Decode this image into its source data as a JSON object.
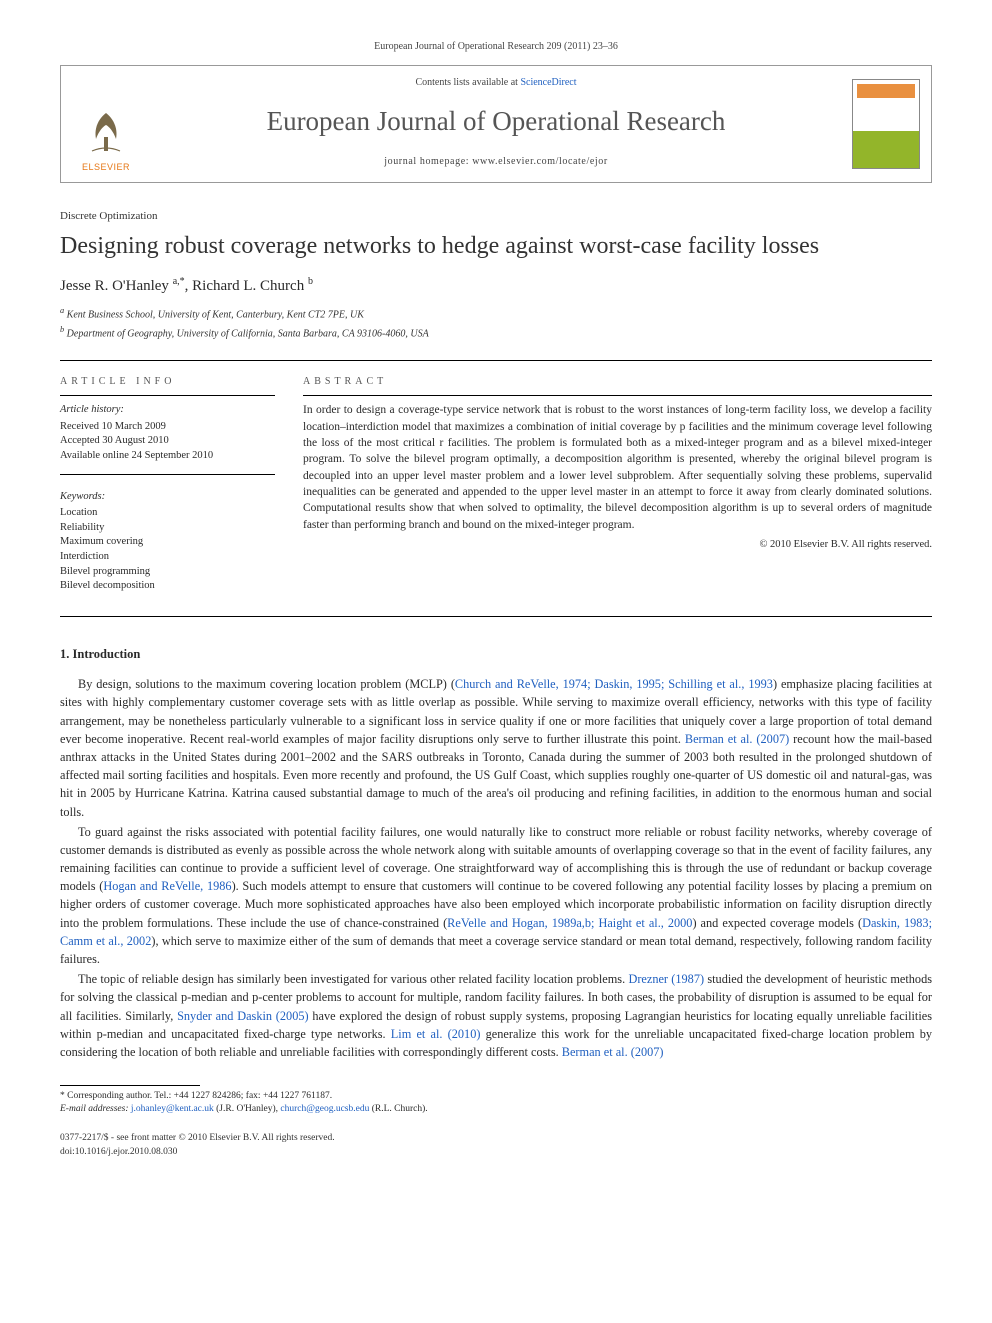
{
  "citation": "European Journal of Operational Research 209 (2011) 23–36",
  "header": {
    "contents_prefix": "Contents lists available at ",
    "contents_link": "ScienceDirect",
    "journal": "European Journal of Operational Research",
    "homepage_prefix": "journal homepage: ",
    "homepage_url": "www.elsevier.com/locate/ejor",
    "publisher_logo_text": "ELSEVIER",
    "publisher_color": "#e67817",
    "cover_accent_color": "#93b52a"
  },
  "article": {
    "section": "Discrete Optimization",
    "title": "Designing robust coverage networks to hedge against worst-case facility losses",
    "authors_html": "Jesse R. O'Hanley <sup>a,</sup>*, Richard L. Church <sup>b</sup>",
    "authors": [
      {
        "name": "Jesse R. O'Hanley",
        "markers": "a,*"
      },
      {
        "name": "Richard L. Church",
        "markers": "b"
      }
    ],
    "affiliations": [
      {
        "marker": "a",
        "text": "Kent Business School, University of Kent, Canterbury, Kent CT2 7PE, UK"
      },
      {
        "marker": "b",
        "text": "Department of Geography, University of California, Santa Barbara, CA 93106-4060, USA"
      }
    ]
  },
  "info": {
    "heading": "ARTICLE INFO",
    "history_heading": "Article history:",
    "history": [
      "Received 10 March 2009",
      "Accepted 30 August 2010",
      "Available online 24 September 2010"
    ],
    "keywords_heading": "Keywords:",
    "keywords": [
      "Location",
      "Reliability",
      "Maximum covering",
      "Interdiction",
      "Bilevel programming",
      "Bilevel decomposition"
    ]
  },
  "abstract": {
    "heading": "ABSTRACT",
    "body": "In order to design a coverage-type service network that is robust to the worst instances of long-term facility loss, we develop a facility location–interdiction model that maximizes a combination of initial coverage by p facilities and the minimum coverage level following the loss of the most critical r facilities. The problem is formulated both as a mixed-integer program and as a bilevel mixed-integer program. To solve the bilevel program optimally, a decomposition algorithm is presented, whereby the original bilevel program is decoupled into an upper level master problem and a lower level subproblem. After sequentially solving these problems, supervalid inequalities can be generated and appended to the upper level master in an attempt to force it away from clearly dominated solutions. Computational results show that when solved to optimality, the bilevel decomposition algorithm is up to several orders of magnitude faster than performing branch and bound on the mixed-integer program.",
    "copyright": "© 2010 Elsevier B.V. All rights reserved."
  },
  "sections": {
    "s1_heading": "1. Introduction",
    "paragraphs": [
      "By design, solutions to the maximum covering location problem (MCLP) (Church and ReVelle, 1974; Daskin, 1995; Schilling et al., 1993) emphasize placing facilities at sites with highly complementary customer coverage sets with as little overlap as possible. While serving to maximize overall efficiency, networks with this type of facility arrangement, may be nonetheless particularly vulnerable to a significant loss in service quality if one or more facilities that uniquely cover a large proportion of total demand ever become inoperative. Recent real-world examples of major facility disruptions only serve to further illustrate this point. Berman et al. (2007) recount how the mail-based anthrax attacks in the United States during 2001–2002 and the SARS outbreaks in Toronto, Canada during the summer of 2003 both resulted in the prolonged shutdown of affected mail sorting facilities and hospitals. Even more recently and profound, the US Gulf Coast, which supplies roughly one-quarter of US domestic oil and natural-gas, was hit in 2005 by Hurricane Katrina. Katrina caused substantial damage to much of the area's oil producing and refining facilities, in addition to the enormous human and social tolls.",
      "To guard against the risks associated with potential facility failures, one would naturally like to construct more reliable or robust facility networks, whereby coverage of customer demands is distributed as evenly as possible across the whole network along with suitable amounts of overlapping coverage so that in the event of facility failures, any remaining facilities can continue to provide a sufficient level of coverage. One straightforward way of accomplishing this is through the use of redundant or backup coverage models (Hogan and ReVelle, 1986). Such models attempt to ensure that customers will continue to be covered following any potential facility losses by placing a premium on higher orders of customer coverage. Much more sophisticated approaches have also been employed which incorporate probabilistic information on facility disruption directly into the problem formulations. These include the use of chance-constrained (ReVelle and Hogan, 1989a,b; Haight et al., 2000) and expected coverage models (Daskin, 1983; Camm et al., 2002), which serve to maximize either of the sum of demands that meet a coverage service standard or mean total demand, respectively, following random facility failures.",
      "The topic of reliable design has similarly been investigated for various other related facility location problems. Drezner (1987) studied the development of heuristic methods for solving the classical p-median and p-center problems to account for multiple, random facility failures. In both cases, the probability of disruption is assumed to be equal for all facilities. Similarly, Snyder and Daskin (2005) have explored the design of robust supply systems, proposing Lagrangian heuristics for locating equally unreliable facilities within p-median and uncapacitated fixed-charge type networks. Lim et al. (2010) generalize this work for the unreliable uncapacitated fixed-charge location problem by considering the location of both reliable and unreliable facilities with correspondingly different costs. Berman et al. (2007)"
    ],
    "ref_spans": {
      "p0": [
        "Church and ReVelle, 1974; Daskin, 1995; Schilling et al., 1993",
        "Berman et al. (2007)"
      ],
      "p1": [
        "Hogan and ReVelle, 1986",
        "ReVelle and Hogan, 1989a,b; Haight et al., 2000",
        "Daskin, 1983; Camm et al., 2002"
      ],
      "p2": [
        "Drezner (1987)",
        "Snyder and Daskin (2005)",
        "Lim et al. (2010)",
        "Berman et al. (2007)"
      ]
    }
  },
  "footnotes": {
    "corr_label": "* Corresponding author. Tel.: +44 1227 824286; fax: +44 1227 761187.",
    "email_label": "E-mail addresses:",
    "emails": [
      {
        "addr": "j.ohanley@kent.ac.uk",
        "who": "(J.R. O'Hanley),"
      },
      {
        "addr": "church@geog.ucsb.edu",
        "who": "(R.L. Church)."
      }
    ]
  },
  "bottom": {
    "issn_line": "0377-2217/$ - see front matter © 2010 Elsevier B.V. All rights reserved.",
    "doi_line": "doi:10.1016/j.ejor.2010.08.030"
  },
  "colors": {
    "link": "#2060c0",
    "text": "#2a2a2a",
    "rule": "#000000",
    "publisher": "#e67817"
  }
}
